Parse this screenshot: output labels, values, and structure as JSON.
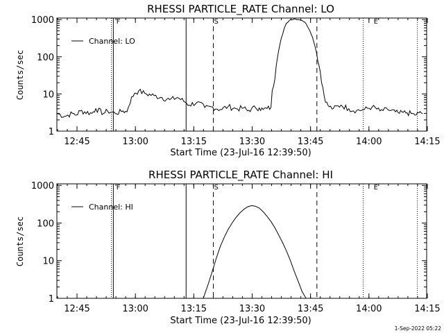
{
  "charts": [
    {
      "title": "RHESSI PARTICLE_RATE Channel: LO",
      "xlabel": "Start Time (23-Jul-16 12:39:50)",
      "ylabel": "Counts/sec",
      "legend": "Channel: LO"
    },
    {
      "title": "RHESSI PARTICLE_RATE Channel: HI",
      "xlabel": "Start Time (23-Jul-16 12:39:50)",
      "ylabel": "Counts/sec",
      "legend": "Channel: HI"
    }
  ],
  "x_tick_labels": [
    "12:45",
    "13:00",
    "13:15",
    "13:30",
    "13:45",
    "14:00",
    "14:15"
  ],
  "y_tick_labels": [
    "1",
    "10",
    "100",
    "1000"
  ],
  "marker_labels": {
    "F": "F",
    "S": "S",
    "E": "E"
  },
  "timestamp": "1-Sep-2022 05:22",
  "chart_data": [
    {
      "type": "line",
      "title": "RHESSI PARTICLE_RATE Channel: LO",
      "xlabel": "Start Time (23-Jul-16 12:39:50)",
      "ylabel": "Counts/sec",
      "yscale": "log",
      "xlim_minutes": [
        0,
        95
      ],
      "ylim": [
        1,
        1100
      ],
      "x_ticks": [
        "12:45",
        "13:00",
        "13:15",
        "13:30",
        "13:45",
        "14:00",
        "14:15"
      ],
      "series": [
        {
          "name": "Channel: LO",
          "x_minutes": [
            0,
            2,
            4,
            5,
            6,
            9,
            10,
            12,
            13,
            15,
            17,
            18,
            20,
            21,
            23,
            25,
            27,
            29,
            31,
            33,
            34,
            36,
            38,
            40,
            42,
            44,
            46,
            48,
            49,
            50,
            51,
            52,
            53,
            54,
            55,
            56,
            57,
            58,
            59,
            60,
            61,
            62,
            63,
            64,
            65,
            66,
            67,
            68,
            69,
            70,
            71,
            73,
            75,
            77,
            79,
            81,
            83,
            85,
            87,
            88,
            89,
            90,
            91,
            92,
            93,
            94
          ],
          "values": [
            3,
            2.5,
            3,
            2.7,
            3.5,
            3,
            4,
            3,
            3.5,
            3,
            3.5,
            3.3,
            10.5,
            12,
            10,
            9,
            8,
            7,
            8,
            6,
            5,
            6,
            4.3,
            4.5,
            3.8,
            4.6,
            4,
            4.2,
            3.5,
            4,
            4.3,
            4.2,
            3.8,
            4.1,
            4.3,
            25,
            150,
            400,
            800,
            1000,
            1050,
            1010,
            950,
            780,
            500,
            250,
            80,
            20,
            6,
            4.5,
            4,
            5,
            4,
            3.6,
            3.8,
            4.5,
            3.5,
            3.8,
            3.3,
            3,
            3.2,
            3.1,
            3,
            2.7,
            3.1,
            3
          ],
          "noise": true
        }
      ],
      "markers_minutes": {
        "F": 15.1,
        "S": 40.2,
        "E": 81.2,
        "solid": [
          14.5,
          33.2
        ],
        "dashed": [
          40.2,
          66.8
        ],
        "dotted": [
          14.0,
          78.7,
          92.6
        ]
      }
    },
    {
      "type": "line",
      "title": "RHESSI PARTICLE_RATE Channel: HI",
      "xlabel": "Start Time (23-Jul-16 12:39:50)",
      "ylabel": "Counts/sec",
      "yscale": "log",
      "xlim_minutes": [
        0,
        95
      ],
      "ylim": [
        1,
        1100
      ],
      "x_ticks": [
        "12:45",
        "13:00",
        "13:15",
        "13:30",
        "13:45",
        "14:00",
        "14:15"
      ],
      "series": [
        {
          "name": "Channel: HI",
          "x_minutes": [
            37.6,
            38,
            39,
            40,
            41,
            42,
            43,
            44,
            45,
            46,
            47,
            48,
            49,
            50,
            51,
            52,
            53,
            54,
            55,
            56,
            57,
            58,
            59,
            60,
            61,
            62,
            63,
            64
          ],
          "values": [
            1,
            1.3,
            2.6,
            5.5,
            12,
            24,
            42,
            68,
            100,
            140,
            185,
            230,
            270,
            290,
            280,
            250,
            200,
            150,
            110,
            75,
            48,
            30,
            18,
            10,
            5.2,
            2.8,
            1.5,
            1
          ],
          "noise": false
        }
      ],
      "markers_minutes": {
        "F": 15.1,
        "S": 40.2,
        "E": 81.2,
        "solid": [
          14.5,
          33.2
        ],
        "dashed": [
          40.2,
          66.8
        ],
        "dotted": [
          14.0,
          78.7,
          92.6
        ]
      }
    }
  ]
}
